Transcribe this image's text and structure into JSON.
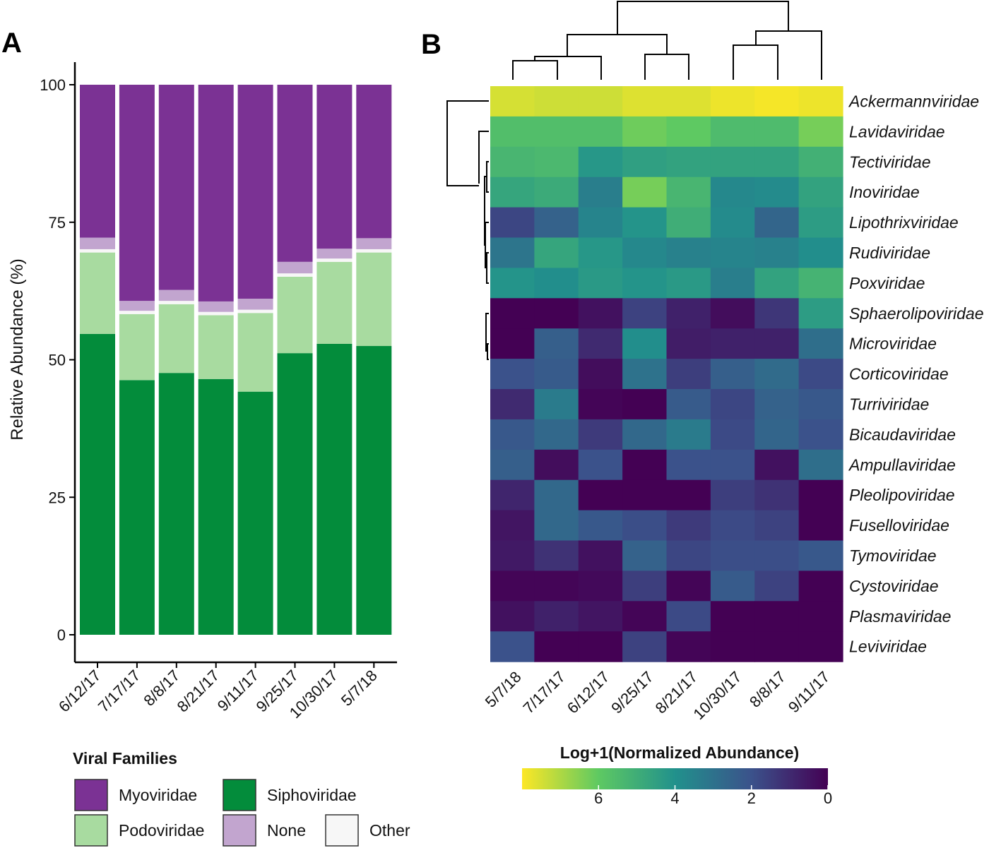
{
  "chart_data": [
    {
      "panel": "A",
      "type": "bar",
      "stacked": true,
      "title": "",
      "xlabel": "",
      "ylabel": "Relative  Abundance (%)",
      "ylim": [
        0,
        100
      ],
      "yticks": [
        0,
        25,
        50,
        75,
        100
      ],
      "categories": [
        "6/12/17",
        "7/17/17",
        "8/8/17",
        "8/21/17",
        "9/11/17",
        "9/25/17",
        "10/30/17",
        "5/7/18"
      ],
      "series": [
        {
          "name": "Siphoviridae",
          "color": "#038C3B",
          "values": [
            54.7,
            46.3,
            47.6,
            46.5,
            44.2,
            51.2,
            52.9,
            52.5
          ]
        },
        {
          "name": "Podoviridae",
          "color": "#A8DBA0",
          "values": [
            14.8,
            12.0,
            12.5,
            11.6,
            14.3,
            13.9,
            14.9,
            17.0
          ]
        },
        {
          "name": "Other",
          "color": "#F7F7F7",
          "values": [
            0.6,
            0.6,
            0.6,
            0.6,
            0.6,
            0.6,
            0.6,
            0.6
          ]
        },
        {
          "name": "None",
          "color": "#C2A5CF",
          "values": [
            2.1,
            1.8,
            2.0,
            1.9,
            2.0,
            2.1,
            1.8,
            2.0
          ]
        },
        {
          "name": "Myoviridae",
          "color": "#7B3294",
          "values": [
            27.8,
            39.3,
            37.3,
            39.4,
            38.9,
            32.2,
            29.8,
            27.9
          ]
        }
      ],
      "legend": {
        "title": "Viral Families",
        "position": "bottom-left",
        "entries": [
          {
            "name": "Myoviridae",
            "color": "#7B3294"
          },
          {
            "name": "Siphoviridae",
            "color": "#038C3B"
          },
          {
            "name": "Podoviridae",
            "color": "#A8DBA0"
          },
          {
            "name": "None",
            "color": "#C2A5CF"
          },
          {
            "name": "Other",
            "color": "#F7F7F7"
          }
        ]
      }
    },
    {
      "panel": "B",
      "type": "heatmap",
      "title": "",
      "columns": [
        "5/7/18",
        "7/17/17",
        "6/12/17",
        "9/25/17",
        "8/21/17",
        "10/30/17",
        "8/8/17",
        "9/11/17"
      ],
      "rows": [
        "Ackermannviridae",
        "Lavidaviridae",
        "Tectiviridae",
        "Inoviridae",
        "Lipothrixviridae",
        "Rudiviridae",
        "Poxviridae",
        "Sphaerolipoviridae",
        "Microviridae",
        "Corticoviridae",
        "Turriviridae",
        "Bicaudaviridae",
        "Ampullaviridae",
        "Pleolipoviridae",
        "Fuselloviridae",
        "Tymoviridae",
        "Cystoviridae",
        "Plasmaviridae",
        "Leviviridae"
      ],
      "values": [
        [
          7.5,
          7.4,
          7.4,
          7.6,
          7.6,
          7.8,
          7.9,
          7.8
        ],
        [
          5.6,
          5.6,
          5.6,
          6.2,
          6.0,
          5.5,
          5.5,
          6.3
        ],
        [
          5.3,
          5.4,
          4.2,
          4.5,
          4.6,
          4.6,
          4.6,
          5.1
        ],
        [
          4.7,
          4.9,
          3.4,
          6.3,
          5.3,
          3.7,
          3.8,
          4.6
        ],
        [
          1.7,
          2.5,
          3.6,
          4.1,
          5.0,
          3.8,
          2.6,
          4.4
        ],
        [
          3.1,
          4.7,
          4.2,
          3.7,
          3.5,
          3.6,
          3.5,
          3.9
        ],
        [
          4.1,
          3.9,
          4.3,
          4.1,
          4.3,
          3.4,
          4.6,
          5.2
        ],
        [
          0.0,
          0.0,
          0.4,
          1.6,
          0.8,
          0.3,
          1.3,
          4.4
        ],
        [
          0.0,
          2.4,
          1.0,
          3.9,
          0.7,
          0.8,
          0.8,
          2.9
        ],
        [
          2.0,
          2.3,
          0.3,
          3.0,
          1.5,
          2.4,
          2.8,
          1.8
        ],
        [
          1.0,
          3.3,
          0.1,
          0.0,
          2.3,
          1.7,
          2.5,
          2.2
        ],
        [
          2.2,
          2.7,
          1.4,
          2.7,
          3.3,
          1.8,
          2.6,
          2.0
        ],
        [
          2.4,
          0.3,
          2.0,
          0.0,
          2.0,
          2.0,
          0.4,
          2.9
        ],
        [
          0.9,
          2.7,
          0.0,
          0.0,
          0.0,
          1.5,
          1.2,
          0.0
        ],
        [
          0.5,
          2.7,
          2.2,
          1.9,
          1.4,
          1.8,
          1.6,
          0.0
        ],
        [
          0.6,
          1.2,
          0.4,
          2.5,
          1.7,
          1.9,
          1.9,
          2.2
        ],
        [
          0.1,
          0.1,
          0.2,
          1.5,
          0.1,
          2.3,
          1.6,
          0.0
        ],
        [
          0.4,
          0.8,
          0.5,
          0.1,
          1.8,
          0.0,
          0.0,
          0.0
        ],
        [
          2.0,
          0.0,
          0.0,
          1.6,
          0.1,
          0.0,
          0.0,
          0.0
        ]
      ],
      "colorbar": {
        "title": "Log+1(Normalized Abundance)",
        "range": [
          0,
          8
        ],
        "ticks": [
          6,
          4,
          2,
          0
        ],
        "reversed": true,
        "colormap": [
          "#440154",
          "#3b528b",
          "#21918c",
          "#5ec962",
          "#fde725"
        ]
      }
    }
  ]
}
